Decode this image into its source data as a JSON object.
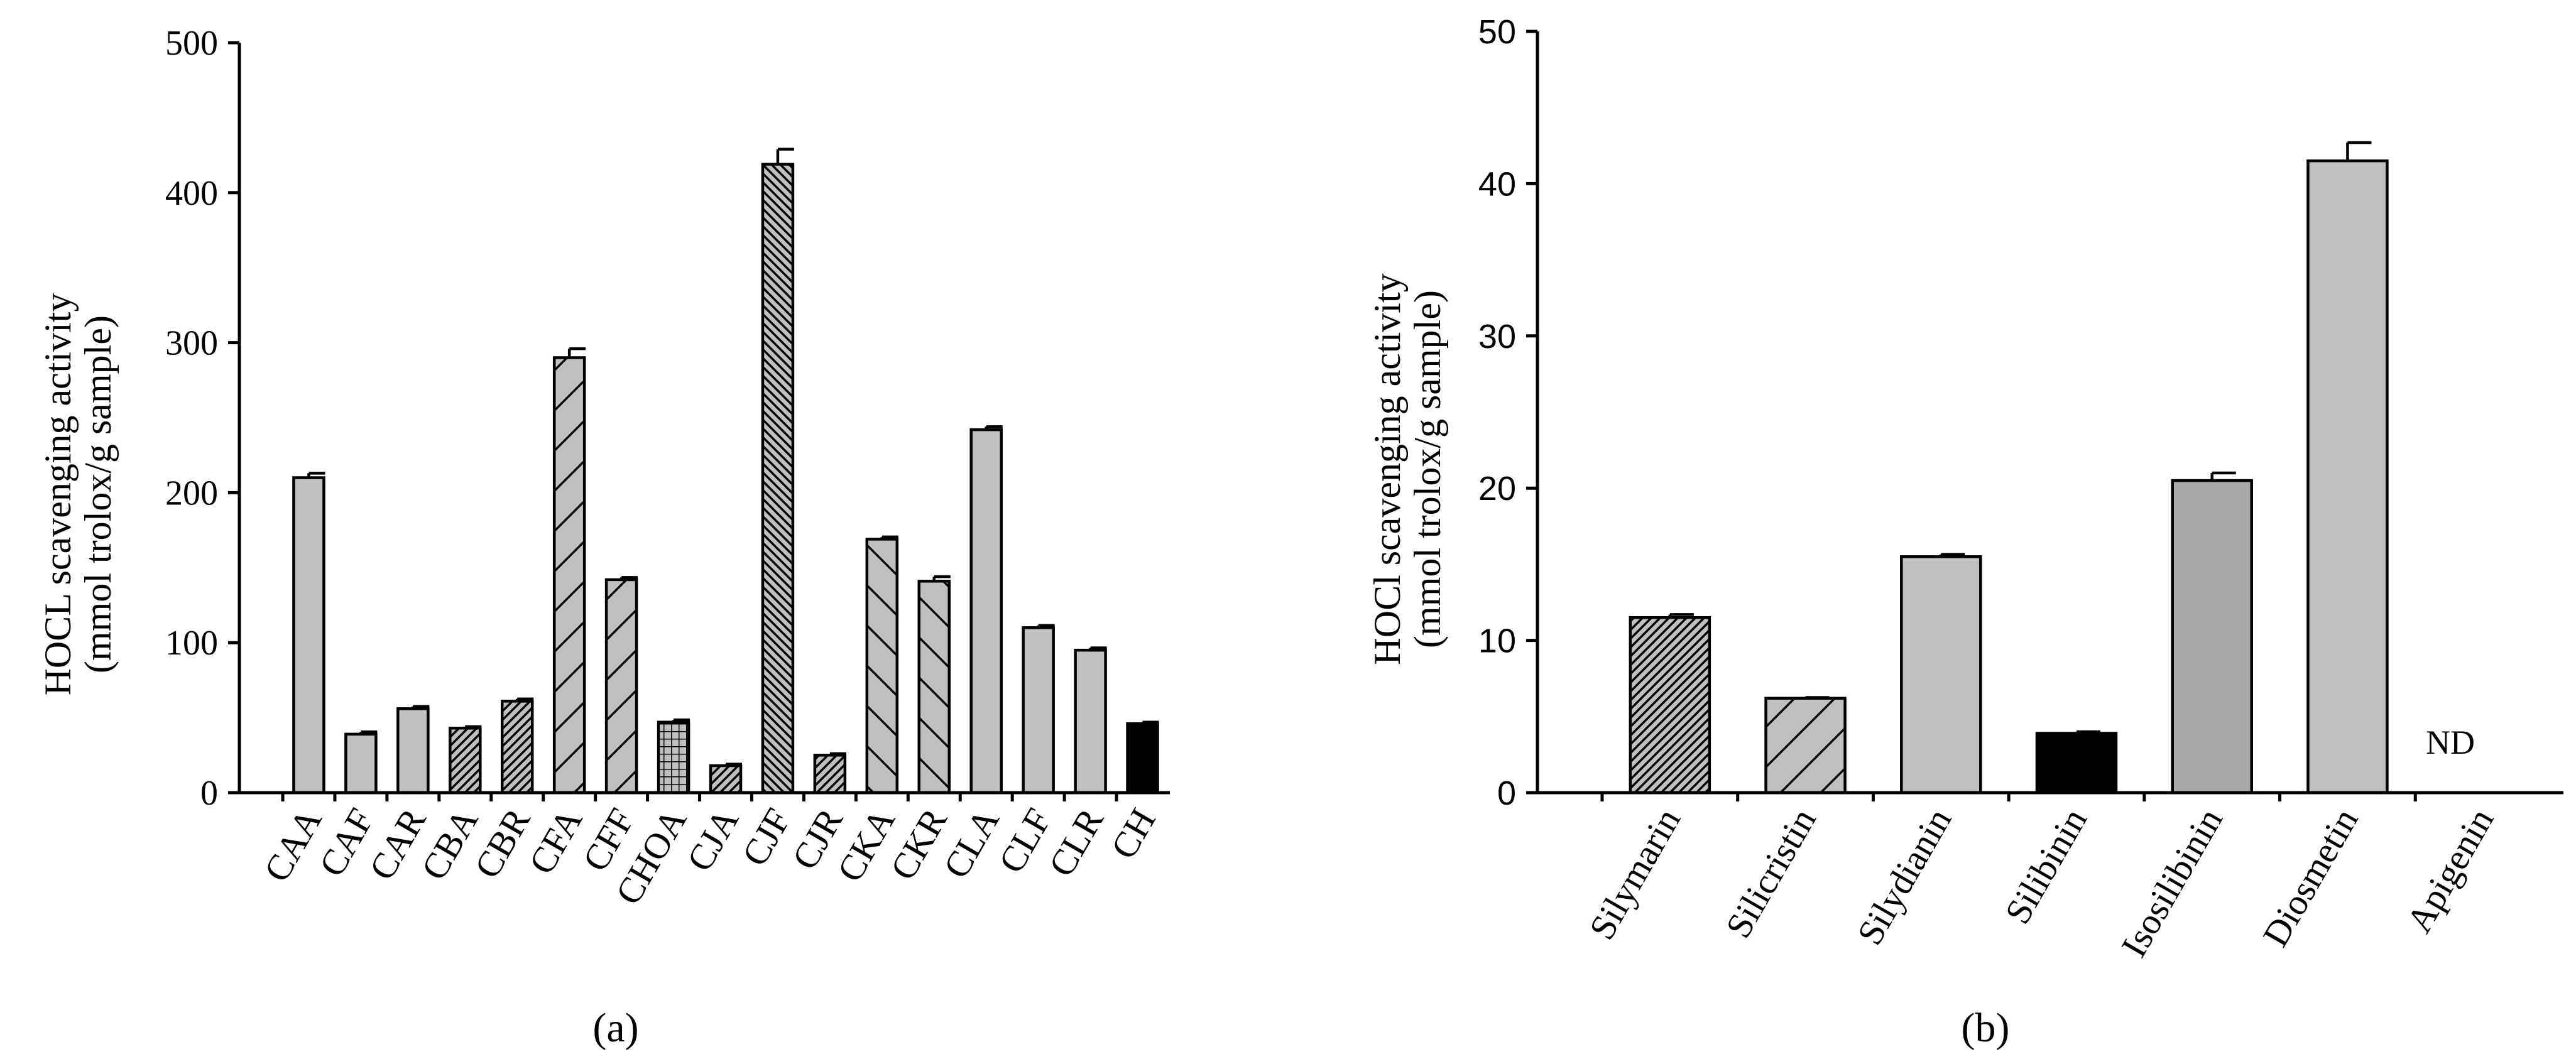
{
  "chart_data": [
    {
      "type": "bar",
      "panel_label": "(a)",
      "ylabel_line1": "HOCL scavenging activity",
      "ylabel_line2": "(mmol trolox/g sample)",
      "ylim": [
        0,
        500
      ],
      "yticks": [
        "0",
        "100",
        "200",
        "300",
        "400",
        "500"
      ],
      "categories": [
        "CAA",
        "CAF",
        "CAR",
        "CBA",
        "CBR",
        "CFA",
        "CFF",
        "CHOA",
        "CJA",
        "CJF",
        "CJR",
        "CKA",
        "CKR",
        "CLA",
        "CLF",
        "CLR",
        "CH"
      ],
      "values": [
        210,
        39,
        56,
        43,
        61,
        290,
        142,
        47,
        18,
        419,
        25,
        169,
        141,
        242,
        110,
        95,
        46
      ],
      "errors": [
        3,
        1.5,
        1.5,
        1,
        1.5,
        6,
        1.5,
        1.5,
        1,
        10,
        1,
        1.5,
        3,
        2,
        1.5,
        1.5,
        1
      ],
      "patterns": [
        "gray",
        "gray",
        "gray",
        "dense-hatch",
        "dense-hatch",
        "diag-fwd",
        "diag-fwd",
        "grid",
        "dense-hatch",
        "fine-back",
        "dense-hatch",
        "diag-back",
        "diag-back",
        "gray",
        "gray",
        "gray",
        "black"
      ]
    },
    {
      "type": "bar",
      "panel_label": "(b)",
      "ylabel_line1": "HOCl scavenging activity",
      "ylabel_line2": "(mmol trolox/g sample)",
      "ylim": [
        0,
        50
      ],
      "yticks": [
        "0",
        "10",
        "20",
        "30",
        "40",
        "50"
      ],
      "categories": [
        "Silymarin",
        "Silicristin",
        "Silydianin",
        "Silibinin",
        "Isosilibinin",
        "Diosmetin",
        "Apigenin"
      ],
      "values": [
        11.5,
        6.2,
        15.5,
        3.9,
        20.5,
        41.5,
        null
      ],
      "errors": [
        0.2,
        0.05,
        0.15,
        0.1,
        0.5,
        1.2,
        null
      ],
      "patterns": [
        "dense-hatch",
        "diag-fwd",
        "gray",
        "black",
        "gray-dark",
        "gray",
        "none"
      ],
      "annotations": [
        "ND"
      ]
    }
  ],
  "colors": {
    "bar_gray": "#c0c0c0",
    "bar_gray_dark": "#a8a8a8",
    "bar_black": "#000000",
    "line": "#000000"
  }
}
